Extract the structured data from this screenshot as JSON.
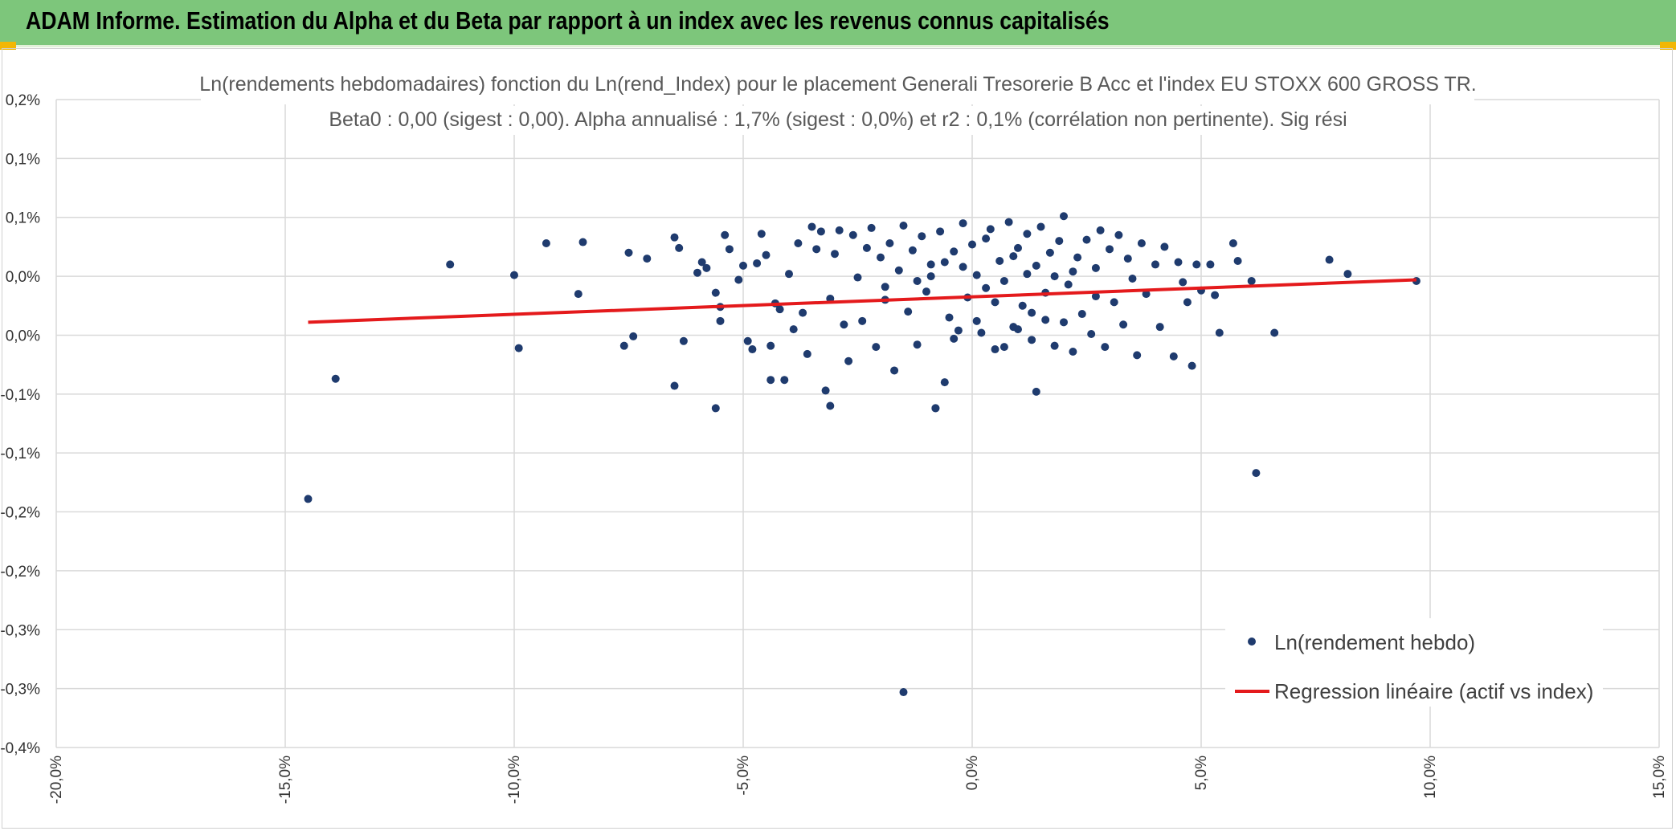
{
  "header": {
    "title": "ADAM Informe. Estimation du Alpha et du Beta par rapport à un index avec les revenus connus capitalisés"
  },
  "colors": {
    "banner": "#7dc67b",
    "points": "#1f3b6e",
    "regression": "#e41a1c",
    "grid": "#d9d9d9"
  },
  "chart_data": {
    "type": "scatter",
    "title_line1": "Ln(rendements hebdomadaires) fonction du Ln(rend_Index) pour le placement Generali Tresorerie B Acc et l'index EU STOXX 600 GROSS TR.",
    "title_line2": "Beta0 : 0,00 (sigest : 0,00). Alpha annualisé : 1,7% (sigest : 0,0%) et r2 : 0,1% (corrélation non pertinente). Sig rési",
    "xlim": [
      -0.2,
      0.15
    ],
    "ylim": [
      -0.0035,
      0.002
    ],
    "x_ticks": [
      -0.2,
      -0.15,
      -0.1,
      -0.05,
      0.0,
      0.05,
      0.1,
      0.15
    ],
    "x_tick_labels": [
      "-20,0%",
      "-15,0%",
      "-10,0%",
      "-5,0%",
      "0,0%",
      "5,0%",
      "10,0%",
      "15,0%"
    ],
    "y_ticks": [
      0.002,
      0.0015,
      0.001,
      0.0005,
      0.0,
      -0.0005,
      -0.001,
      -0.0015,
      -0.002,
      -0.0025,
      -0.003,
      -0.0035
    ],
    "y_tick_labels": [
      "0,2%",
      "0,1%",
      "0,1%",
      "0,0%",
      "0,0%",
      "-0,1%",
      "-0,1%",
      "-0,2%",
      "-0,2%",
      "-0,3%",
      "-0,3%",
      "-0,4%"
    ],
    "grid": true,
    "legend_position": "bottom-right",
    "series": [
      {
        "name": "Ln(rendement hebdo)",
        "type": "scatter",
        "points": [
          [
            -0.145,
            -0.00139
          ],
          [
            -0.139,
            -0.00037
          ],
          [
            -0.114,
            0.0006
          ],
          [
            -0.1,
            0.00051
          ],
          [
            -0.099,
            -0.00011
          ],
          [
            -0.093,
            0.00078
          ],
          [
            -0.085,
            0.00079
          ],
          [
            -0.086,
            0.00035
          ],
          [
            -0.075,
            0.0007
          ],
          [
            -0.074,
            -1e-05
          ],
          [
            -0.076,
            -9e-05
          ],
          [
            -0.071,
            0.00065
          ],
          [
            -0.065,
            0.00083
          ],
          [
            -0.064,
            0.00074
          ],
          [
            -0.063,
            -5e-05
          ],
          [
            -0.065,
            -0.00043
          ],
          [
            -0.06,
            0.00053
          ],
          [
            -0.059,
            0.00062
          ],
          [
            -0.058,
            0.00057
          ],
          [
            -0.056,
            0.00036
          ],
          [
            -0.055,
            0.00024
          ],
          [
            -0.055,
            0.00012
          ],
          [
            -0.056,
            -0.00062
          ],
          [
            -0.054,
            0.00085
          ],
          [
            -0.053,
            0.00073
          ],
          [
            -0.051,
            0.00047
          ],
          [
            -0.05,
            0.00059
          ],
          [
            -0.049,
            -5e-05
          ],
          [
            -0.048,
            -0.00012
          ],
          [
            -0.047,
            0.00061
          ],
          [
            -0.046,
            0.00086
          ],
          [
            -0.045,
            0.00068
          ],
          [
            -0.044,
            -9e-05
          ],
          [
            -0.043,
            0.00027
          ],
          [
            -0.042,
            0.00022
          ],
          [
            -0.041,
            -0.00038
          ],
          [
            -0.04,
            0.00052
          ],
          [
            -0.039,
            5e-05
          ],
          [
            -0.038,
            0.00078
          ],
          [
            -0.037,
            0.00019
          ],
          [
            -0.036,
            -0.00016
          ],
          [
            -0.035,
            0.00092
          ],
          [
            -0.034,
            0.00073
          ],
          [
            -0.033,
            0.00088
          ],
          [
            -0.032,
            -0.00047
          ],
          [
            -0.031,
            0.00031
          ],
          [
            -0.03,
            0.00069
          ],
          [
            -0.029,
            0.00089
          ],
          [
            -0.028,
            9e-05
          ],
          [
            -0.027,
            -0.00022
          ],
          [
            -0.026,
            0.00085
          ],
          [
            -0.025,
            0.00049
          ],
          [
            -0.024,
            0.00012
          ],
          [
            -0.023,
            0.00074
          ],
          [
            -0.022,
            0.00091
          ],
          [
            -0.021,
            -0.0001
          ],
          [
            -0.02,
            0.00066
          ],
          [
            -0.019,
            0.00041
          ],
          [
            -0.018,
            0.00078
          ],
          [
            -0.017,
            -0.0003
          ],
          [
            -0.016,
            0.00055
          ],
          [
            -0.015,
            0.00093
          ],
          [
            -0.014,
            0.0002
          ],
          [
            -0.013,
            0.00072
          ],
          [
            -0.012,
            -8e-05
          ],
          [
            -0.011,
            0.00084
          ],
          [
            -0.01,
            0.00037
          ],
          [
            -0.009,
            0.0006
          ],
          [
            -0.008,
            -0.00062
          ],
          [
            -0.007,
            0.00088
          ],
          [
            -0.006,
            -0.0004
          ],
          [
            -0.005,
            0.00015
          ],
          [
            -0.004,
            0.00071
          ],
          [
            -0.003,
            4e-05
          ],
          [
            -0.002,
            0.00095
          ],
          [
            -0.001,
            0.00032
          ],
          [
            0.0,
            0.00077
          ],
          [
            0.001,
            0.00051
          ],
          [
            0.002,
            2e-05
          ],
          [
            0.003,
            0.00082
          ],
          [
            0.004,
            0.0009
          ],
          [
            0.005,
            -0.00012
          ],
          [
            0.006,
            0.00063
          ],
          [
            0.007,
            0.00046
          ],
          [
            0.008,
            0.00096
          ],
          [
            0.009,
            7e-05
          ],
          [
            0.01,
            0.00074
          ],
          [
            0.011,
            0.00025
          ],
          [
            0.012,
            0.00086
          ],
          [
            0.013,
            -4e-05
          ],
          [
            0.014,
            0.00059
          ],
          [
            0.015,
            0.00092
          ],
          [
            0.016,
            0.00013
          ],
          [
            0.017,
            0.0007
          ],
          [
            0.018,
            -9e-05
          ],
          [
            0.019,
            0.0008
          ],
          [
            0.02,
            0.00101
          ],
          [
            0.021,
            0.00043
          ],
          [
            0.022,
            -0.00014
          ],
          [
            0.023,
            0.00066
          ],
          [
            0.024,
            0.00018
          ],
          [
            0.025,
            0.00081
          ],
          [
            0.026,
            1e-05
          ],
          [
            0.027,
            0.00057
          ],
          [
            0.028,
            0.00089
          ],
          [
            0.029,
            -0.0001
          ],
          [
            0.03,
            0.00073
          ],
          [
            0.031,
            0.00028
          ],
          [
            0.032,
            0.00085
          ],
          [
            0.033,
            9e-05
          ],
          [
            0.034,
            0.00065
          ],
          [
            0.035,
            0.00048
          ],
          [
            0.036,
            -0.00017
          ],
          [
            0.037,
            0.00078
          ],
          [
            0.038,
            0.00035
          ],
          [
            0.04,
            0.0006
          ],
          [
            0.041,
            7e-05
          ],
          [
            0.042,
            0.00075
          ],
          [
            0.044,
            -0.00018
          ],
          [
            0.045,
            0.00062
          ],
          [
            0.046,
            0.00045
          ],
          [
            0.047,
            0.00028
          ],
          [
            0.048,
            -0.00026
          ],
          [
            0.049,
            0.0006
          ],
          [
            0.05,
            0.00038
          ],
          [
            0.052,
            0.0006
          ],
          [
            0.053,
            0.00034
          ],
          [
            0.054,
            2e-05
          ],
          [
            0.057,
            0.00078
          ],
          [
            0.058,
            0.00063
          ],
          [
            0.061,
            0.00046
          ],
          [
            0.062,
            -0.00117
          ],
          [
            0.066,
            2e-05
          ],
          [
            0.078,
            0.00064
          ],
          [
            0.082,
            0.00052
          ],
          [
            0.097,
            0.00046
          ],
          [
            -0.015,
            -0.00303
          ],
          [
            0.014,
            -0.00048
          ],
          [
            -0.031,
            -0.0006
          ],
          [
            -0.044,
            -0.00038
          ],
          [
            -0.008,
            -0.00062
          ],
          [
            0.007,
            -0.0001
          ],
          [
            -0.019,
            0.0003
          ],
          [
            0.003,
            0.0004
          ],
          [
            0.012,
            0.00052
          ],
          [
            -0.002,
            0.00058
          ],
          [
            0.009,
            0.00067
          ],
          [
            0.018,
            0.0005
          ],
          [
            -0.012,
            0.00046
          ],
          [
            0.005,
            0.00028
          ],
          [
            0.016,
            0.00036
          ],
          [
            -0.006,
            0.00062
          ],
          [
            0.022,
            0.00054
          ],
          [
            0.001,
            0.00012
          ],
          [
            0.01,
            5e-05
          ],
          [
            -0.004,
            -3e-05
          ],
          [
            0.013,
            0.00019
          ],
          [
            0.02,
            0.00011
          ],
          [
            0.027,
            0.00033
          ],
          [
            -0.009,
            0.0005
          ]
        ]
      },
      {
        "name": "Regression linéaire (actif vs index)",
        "type": "line",
        "points": [
          [
            -0.145,
            0.00011
          ],
          [
            0.097,
            0.00047
          ]
        ]
      }
    ]
  }
}
